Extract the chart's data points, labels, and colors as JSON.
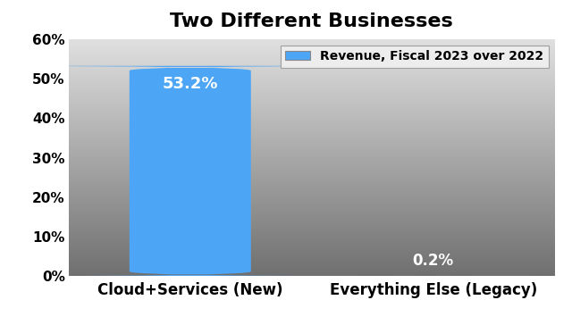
{
  "title": "Two Different Businesses",
  "categories": [
    "Cloud+Services (New)",
    "Everything Else (Legacy)"
  ],
  "values": [
    53.2,
    0.2
  ],
  "bar_color": "#4DA6F5",
  "label_color_inside": "#FFFFFF",
  "ylim": [
    0,
    60
  ],
  "yticks": [
    0,
    10,
    20,
    30,
    40,
    50,
    60
  ],
  "ytick_labels": [
    "0%",
    "10%",
    "20%",
    "30%",
    "40%",
    "50%",
    "60%"
  ],
  "legend_label": "Revenue, Fiscal 2023 over 2022",
  "title_fontsize": 16,
  "tick_fontsize": 11,
  "label_fontsize": 12,
  "bg_top": "#E0E0E0",
  "bg_bottom": "#707070",
  "bar_width": 0.5,
  "bar_positions": [
    0,
    1
  ],
  "xlim": [
    -0.5,
    1.5
  ]
}
